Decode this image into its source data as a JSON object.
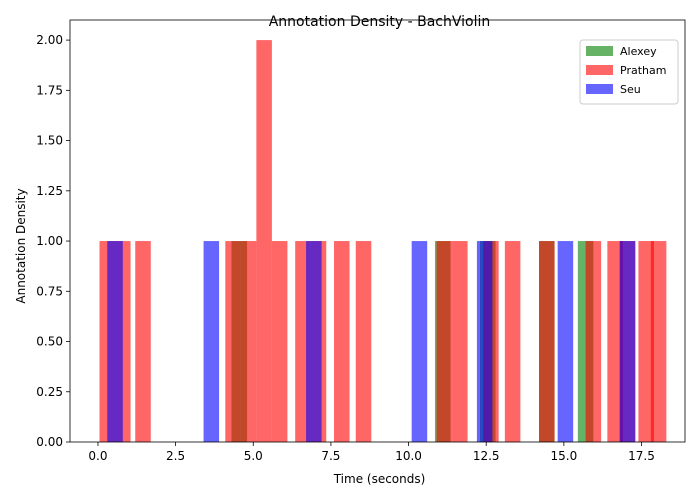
{
  "chart_data": {
    "type": "bar",
    "title": "Annotation Density - BachViolin",
    "xlabel": "Time (seconds)",
    "ylabel": "Annotation Density",
    "xlim": [
      -0.9,
      18.9
    ],
    "ylim": [
      0,
      2.1
    ],
    "bin_width": 0.5,
    "x_ticks": [
      0.0,
      2.5,
      5.0,
      7.5,
      10.0,
      12.5,
      15.0,
      17.5
    ],
    "x_tick_labels": [
      "0.0",
      "2.5",
      "5.0",
      "7.5",
      "10.0",
      "12.5",
      "15.0",
      "17.5"
    ],
    "y_ticks": [
      0,
      0.25,
      0.5,
      0.75,
      1.0,
      1.25,
      1.5,
      1.75,
      2.0
    ],
    "y_tick_labels": [
      "0.00",
      "0.25",
      "0.50",
      "0.75",
      "1.00",
      "1.25",
      "1.50",
      "1.75",
      "2.00"
    ],
    "grid": false,
    "legend_position": "top-right",
    "series": [
      {
        "name": "Alexey",
        "color": "#008000",
        "opacity": 0.6,
        "bins": [
          {
            "x": 4.3,
            "y": 1
          },
          {
            "x": 10.85,
            "y": 1
          },
          {
            "x": 12.3,
            "y": 1
          },
          {
            "x": 14.2,
            "y": 1
          },
          {
            "x": 15.45,
            "y": 1
          }
        ]
      },
      {
        "name": "Pratham",
        "color": "#ff0000",
        "opacity": 0.6,
        "bins": [
          {
            "x": 0.05,
            "y": 1
          },
          {
            "x": 0.55,
            "y": 1
          },
          {
            "x": 1.2,
            "y": 1
          },
          {
            "x": 4.1,
            "y": 1
          },
          {
            "x": 4.6,
            "y": 1
          },
          {
            "x": 5.1,
            "y": 2
          },
          {
            "x": 5.6,
            "y": 1
          },
          {
            "x": 6.35,
            "y": 1
          },
          {
            "x": 6.85,
            "y": 1
          },
          {
            "x": 7.6,
            "y": 1
          },
          {
            "x": 8.3,
            "y": 1
          },
          {
            "x": 10.9,
            "y": 1
          },
          {
            "x": 11.4,
            "y": 1
          },
          {
            "x": 12.4,
            "y": 1
          },
          {
            "x": 13.1,
            "y": 1
          },
          {
            "x": 14.2,
            "y": 1
          },
          {
            "x": 15.7,
            "y": 1
          },
          {
            "x": 16.4,
            "y": 1
          },
          {
            "x": 16.8,
            "y": 1
          },
          {
            "x": 17.4,
            "y": 1
          },
          {
            "x": 17.8,
            "y": 1
          }
        ]
      },
      {
        "name": "Seu",
        "color": "#0000ff",
        "opacity": 0.6,
        "bins": [
          {
            "x": 0.3,
            "y": 1
          },
          {
            "x": 3.4,
            "y": 1
          },
          {
            "x": 6.7,
            "y": 1
          },
          {
            "x": 10.1,
            "y": 1
          },
          {
            "x": 12.2,
            "y": 1
          },
          {
            "x": 14.8,
            "y": 1
          },
          {
            "x": 16.8,
            "y": 1
          }
        ]
      }
    ]
  }
}
